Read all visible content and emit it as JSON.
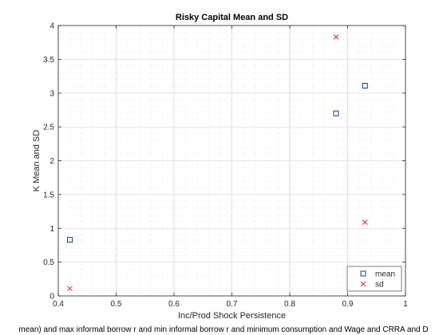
{
  "chart_data": {
    "type": "scatter",
    "title": "Risky Capital Mean and SD",
    "xlabel": "Inc/Prod Shock Persistence",
    "ylabel": "K Mean and SD",
    "caption": "mean) and max informal borrow r and min informal borrow r and minimum consumption and Wage and CRRA and D",
    "xlim": [
      0.4,
      1.0
    ],
    "ylim": [
      0,
      4
    ],
    "xticks": [
      0.4,
      0.5,
      0.6,
      0.7,
      0.8,
      0.9,
      1
    ],
    "xtick_labels": [
      "0.4",
      "0.5",
      "0.6",
      "0.7",
      "0.8",
      "0.9",
      "1"
    ],
    "yticks": [
      0,
      0.5,
      1,
      1.5,
      2,
      2.5,
      3,
      3.5,
      4
    ],
    "ytick_labels": [
      "0",
      "0.5",
      "1",
      "1.5",
      "2",
      "2.5",
      "3",
      "3.5",
      "4"
    ],
    "grid": true,
    "minor_grid": true,
    "legend_position": "bottom-right",
    "series": [
      {
        "name": "mean",
        "marker": "square",
        "color": "#0c3f8f",
        "x": [
          0.42,
          0.88,
          0.93
        ],
        "y": [
          0.83,
          2.7,
          3.11
        ]
      },
      {
        "name": "sd",
        "marker": "x",
        "color": "#d62c2c",
        "x": [
          0.42,
          0.88,
          0.93
        ],
        "y": [
          0.11,
          3.83,
          1.09
        ]
      }
    ]
  }
}
